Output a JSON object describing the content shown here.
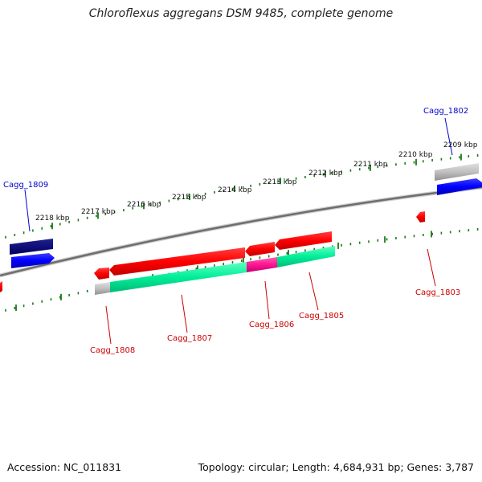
{
  "title": "Chloroflexus aggregans DSM 9485, complete genome",
  "accession": "Accession: NC_011831",
  "summary": "Topology: circular; Length: 4,684,931 bp; Genes: 3,787",
  "scale_labels": [
    "2218 kbp",
    "2217 kbp",
    "2216 kbp",
    "2215 kbp",
    "2214 kbp",
    "2213 kbp",
    "2212 kbp",
    "2211 kbp",
    "2210 kbp",
    "2209 kbp"
  ],
  "genes": [
    {
      "name": "Cagg_1809",
      "strand": "forward",
      "color": "#0000cc"
    },
    {
      "name": "Cagg_1808",
      "strand": "reverse",
      "color": "#cc0000"
    },
    {
      "name": "Cagg_1807",
      "strand": "reverse",
      "color": "#cc0000"
    },
    {
      "name": "Cagg_1806",
      "strand": "reverse",
      "color": "#cc0000"
    },
    {
      "name": "Cagg_1805",
      "strand": "reverse",
      "color": "#cc0000"
    },
    {
      "name": "Cagg_1803",
      "strand": "reverse",
      "color": "#cc0000"
    },
    {
      "name": "Cagg_1802",
      "strand": "forward",
      "color": "#0000cc"
    }
  ],
  "colors": {
    "backbone": "#808080",
    "scale_ticks": "#1a7a1a",
    "forward_gene": "#0000ff",
    "reverse_gene": "#ff0000",
    "feature_green": "#00ee99",
    "feature_magenta": "#ff1493",
    "feature_navy": "#000080",
    "feature_gray": "#b0b0b0"
  }
}
